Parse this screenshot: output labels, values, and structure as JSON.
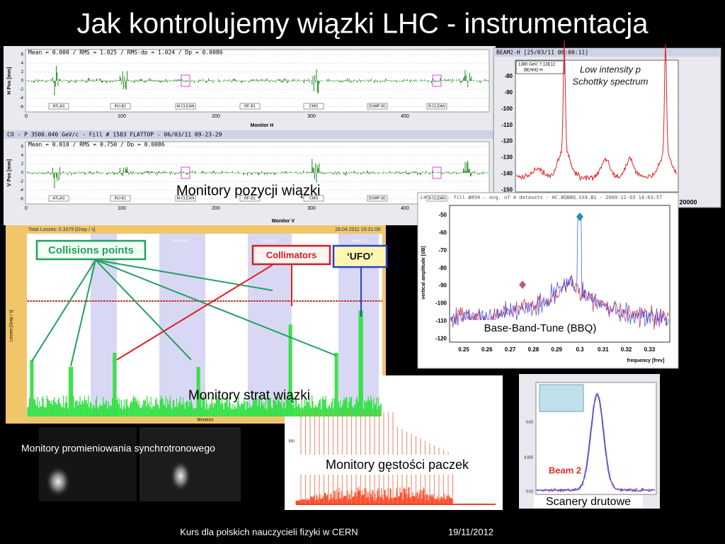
{
  "title": "Jak kontrolujemy wiązki LHC - instrumentacja",
  "footer": {
    "course": "Kurs dla polskich nauczycieli fizyki w CERN",
    "date": "19/11/2012"
  },
  "position_monitors": {
    "caption": "Monitory pozycji wiązki",
    "header": "CO - P 3500.040 GeV/c - Fill # 1583 FLATTOP - 06/03/11 09-23-29",
    "h": {
      "stats": "Mean =   0.000 / RMS =   1.025 / RMS-dp =   1.024 / Dp =  0.0086",
      "ylabel": "H Pos [mm]",
      "xlabel": "Monitor H"
    },
    "v": {
      "stats": "Mean =   0.010 / RMS =   0.750 / Dp =  0.0086",
      "ylabel": "V Pos [mm]",
      "xlabel": "Monitor V"
    },
    "markers": [
      "ATLAS",
      "INJ-B1",
      "M-CLEAN",
      "RF-B1",
      "CMS",
      "DUMP-B1",
      "B-CLEAN"
    ],
    "yticks": [
      "6",
      "4",
      "2",
      "0",
      "-2",
      "-4",
      "-6"
    ],
    "xticks": [
      "0",
      "100",
      "200",
      "300",
      "400"
    ]
  },
  "schottky": {
    "header": "BEAM2-H  [25/03/11 08:00:11]",
    "legend": [
      "1380 GeV, 7.13E12",
      "BEAM2-H"
    ],
    "annotation": [
      "Low intensity p",
      "Schottky spectrum"
    ],
    "yticks": [
      "-80",
      "-90",
      "-100",
      "-110",
      "-120",
      "-130",
      "-140",
      "-150"
    ],
    "xtick": "20000"
  },
  "bbq": {
    "header": "LHC - B1 - fill #894 - avg. of 4 datasets - HC.BQBBQ.SX4.B1 - 2009-12-03 14:03:57",
    "ylabel": "vertical amplitude [dB]",
    "xlabel": "frequency [frev]",
    "caption": "Base-Band-Tune (BBQ)",
    "yticks": [
      "-50",
      "-60",
      "-70",
      "-80",
      "-90",
      "-100",
      "-110",
      "-120"
    ],
    "xticks": [
      "0.25",
      "0.26",
      "0.27",
      "0.28",
      "0.29",
      "0.3",
      "0.31",
      "0.32",
      "0.33"
    ]
  },
  "losses": {
    "header": "Total Losses: 0.3375 [Gray / s]",
    "timestamp": "28.04.2011 16:31:09",
    "sectors": [
      "Sector 4-5",
      "Sector 5-6",
      "Sector 6-7",
      "Sector 7-8",
      "Sector 8-1"
    ],
    "ylabel": "Losses [Gray / s]",
    "xlabel": "Monitors",
    "collisions": "Collisions points",
    "collimators": "Collimators",
    "ufo": "‘UFO’",
    "caption": "Monitory strat wiązki"
  },
  "synchrotron": {
    "caption": "Monitory promieniowania synchrotronowego"
  },
  "bunches": {
    "caption": "Monitory gęstości paczek",
    "ytick": "500"
  },
  "wire": {
    "caption": "Scanery drutowe",
    "beam": "Beam 2",
    "yticks": [
      "0.03",
      "0.025",
      "0.02"
    ]
  }
}
